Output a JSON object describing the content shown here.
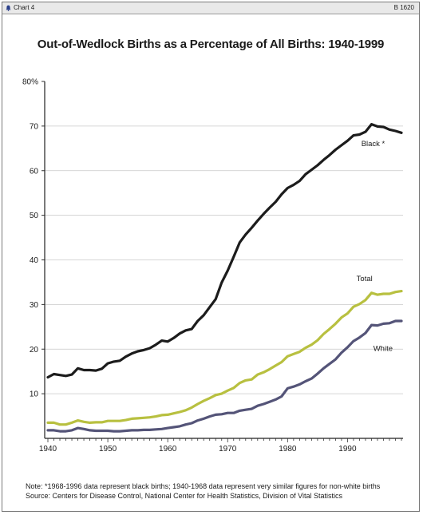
{
  "header": {
    "chart_label": "Chart 4",
    "code": "B 1620",
    "icon": "bell-icon"
  },
  "title": "Out-of-Wedlock Births as a Percentage of All Births: 1940-1999",
  "note": "Note: *1968-1996 data represent black births; 1940-1968 data represent very similar figures for non-white births",
  "source": "Source: Centers for Disease Control, National Center for Health Statistics, Division of Vital Statistics",
  "chart_data": {
    "type": "line",
    "title": "Out-of-Wedlock Births as a Percentage of All Births: 1940-1999",
    "xlabel": "",
    "ylabel": "",
    "xlim": [
      1940,
      1999
    ],
    "ylim": [
      0,
      80
    ],
    "x_ticks": [
      1940,
      1950,
      1960,
      1970,
      1980,
      1990
    ],
    "y_ticks": [
      10,
      20,
      30,
      40,
      50,
      60,
      70,
      80
    ],
    "y_tick_labels": [
      "10",
      "20",
      "30",
      "40",
      "50",
      "60",
      "70",
      "80%"
    ],
    "grid": true,
    "x": [
      1940,
      1941,
      1942,
      1943,
      1944,
      1945,
      1946,
      1947,
      1948,
      1949,
      1950,
      1951,
      1952,
      1953,
      1954,
      1955,
      1956,
      1957,
      1958,
      1959,
      1960,
      1961,
      1962,
      1963,
      1964,
      1965,
      1966,
      1967,
      1968,
      1969,
      1970,
      1971,
      1972,
      1973,
      1974,
      1975,
      1976,
      1977,
      1978,
      1979,
      1980,
      1981,
      1982,
      1983,
      1984,
      1985,
      1986,
      1987,
      1988,
      1989,
      1990,
      1991,
      1992,
      1993,
      1994,
      1995,
      1996,
      1997,
      1998,
      1999
    ],
    "series": [
      {
        "name": "Black *",
        "color": "#1c1c1c",
        "values": [
          13.7,
          14.4,
          14.2,
          14.0,
          14.3,
          15.7,
          15.3,
          15.3,
          15.2,
          15.6,
          16.8,
          17.2,
          17.4,
          18.3,
          19.0,
          19.5,
          19.8,
          20.2,
          21.0,
          21.9,
          21.7,
          22.5,
          23.5,
          24.2,
          24.5,
          26.3,
          27.6,
          29.4,
          31.2,
          34.9,
          37.6,
          40.7,
          43.9,
          45.7,
          47.2,
          48.8,
          50.3,
          51.7,
          53.0,
          54.7,
          56.1,
          56.8,
          57.7,
          59.2,
          60.2,
          61.2,
          62.4,
          63.5,
          64.7,
          65.7,
          66.7,
          67.9,
          68.1,
          68.7,
          70.4,
          69.9,
          69.8,
          69.2,
          68.9,
          68.5
        ]
      },
      {
        "name": "Total",
        "color": "#b8c040",
        "values": [
          3.5,
          3.5,
          3.1,
          3.1,
          3.5,
          4.0,
          3.7,
          3.5,
          3.6,
          3.6,
          3.9,
          3.9,
          3.9,
          4.1,
          4.4,
          4.5,
          4.6,
          4.7,
          4.9,
          5.2,
          5.3,
          5.6,
          5.9,
          6.3,
          6.9,
          7.7,
          8.4,
          9.0,
          9.7,
          10.0,
          10.7,
          11.3,
          12.4,
          13.0,
          13.2,
          14.3,
          14.8,
          15.5,
          16.3,
          17.1,
          18.4,
          18.9,
          19.4,
          20.3,
          21.0,
          22.0,
          23.4,
          24.5,
          25.7,
          27.1,
          28.0,
          29.5,
          30.1,
          31.0,
          32.6,
          32.2,
          32.4,
          32.4,
          32.8,
          33.0
        ]
      },
      {
        "name": "White",
        "color": "#545478",
        "values": [
          1.8,
          1.8,
          1.6,
          1.6,
          1.8,
          2.3,
          2.1,
          1.8,
          1.7,
          1.7,
          1.7,
          1.6,
          1.6,
          1.7,
          1.8,
          1.8,
          1.9,
          1.9,
          2.0,
          2.1,
          2.3,
          2.5,
          2.7,
          3.1,
          3.4,
          4.0,
          4.4,
          4.9,
          5.3,
          5.4,
          5.7,
          5.7,
          6.2,
          6.4,
          6.6,
          7.3,
          7.7,
          8.2,
          8.7,
          9.4,
          11.2,
          11.6,
          12.1,
          12.8,
          13.4,
          14.5,
          15.7,
          16.7,
          17.7,
          19.2,
          20.4,
          21.8,
          22.6,
          23.6,
          25.4,
          25.3,
          25.7,
          25.8,
          26.3,
          26.3
        ]
      }
    ],
    "annotations": [
      "Black *",
      "Total",
      "White"
    ]
  }
}
